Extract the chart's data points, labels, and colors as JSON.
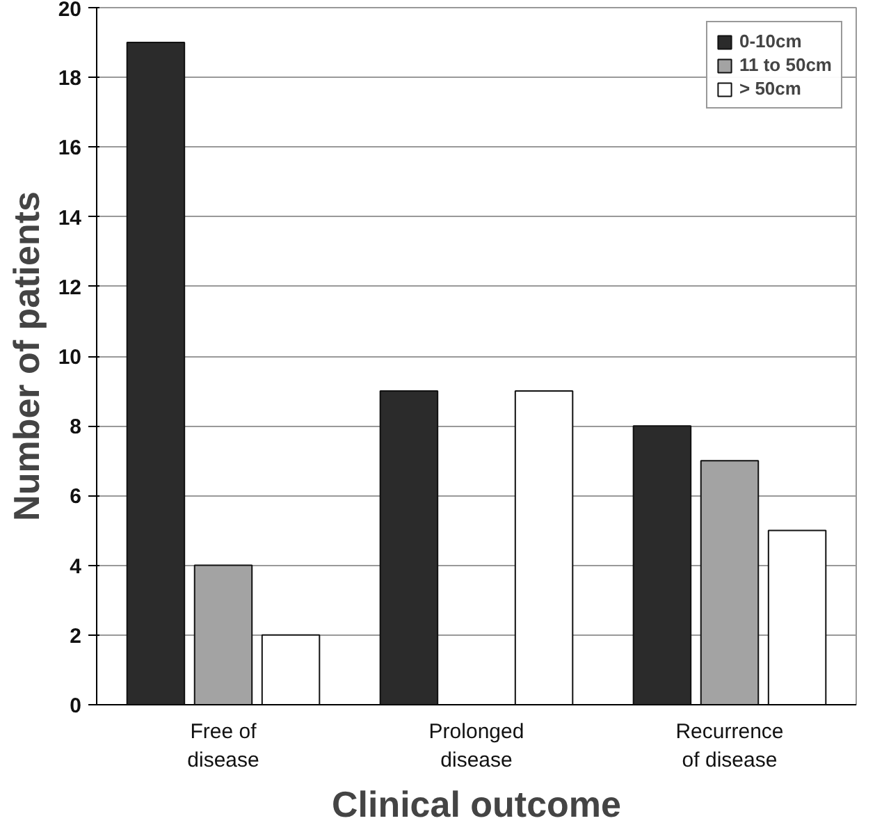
{
  "chart_data": {
    "type": "bar",
    "xlabel": "Clinical outcome",
    "ylabel": "Number of patients",
    "categories": [
      "Free of disease",
      "Prolonged disease",
      "Recurrence of disease"
    ],
    "series": [
      {
        "name": "0-10cm",
        "color": "#2b2b2b",
        "values": [
          19,
          9,
          8
        ]
      },
      {
        "name": "11 to 50cm",
        "color": "#a3a3a3",
        "values": [
          4,
          null,
          7
        ]
      },
      {
        "name": "> 50cm",
        "color": "#ffffff",
        "values": [
          2,
          9,
          5
        ]
      }
    ],
    "ylim": [
      0,
      20
    ],
    "yticks": [
      0,
      2,
      4,
      6,
      8,
      10,
      12,
      14,
      16,
      18,
      20
    ],
    "grid": "y",
    "legend": "top right"
  }
}
